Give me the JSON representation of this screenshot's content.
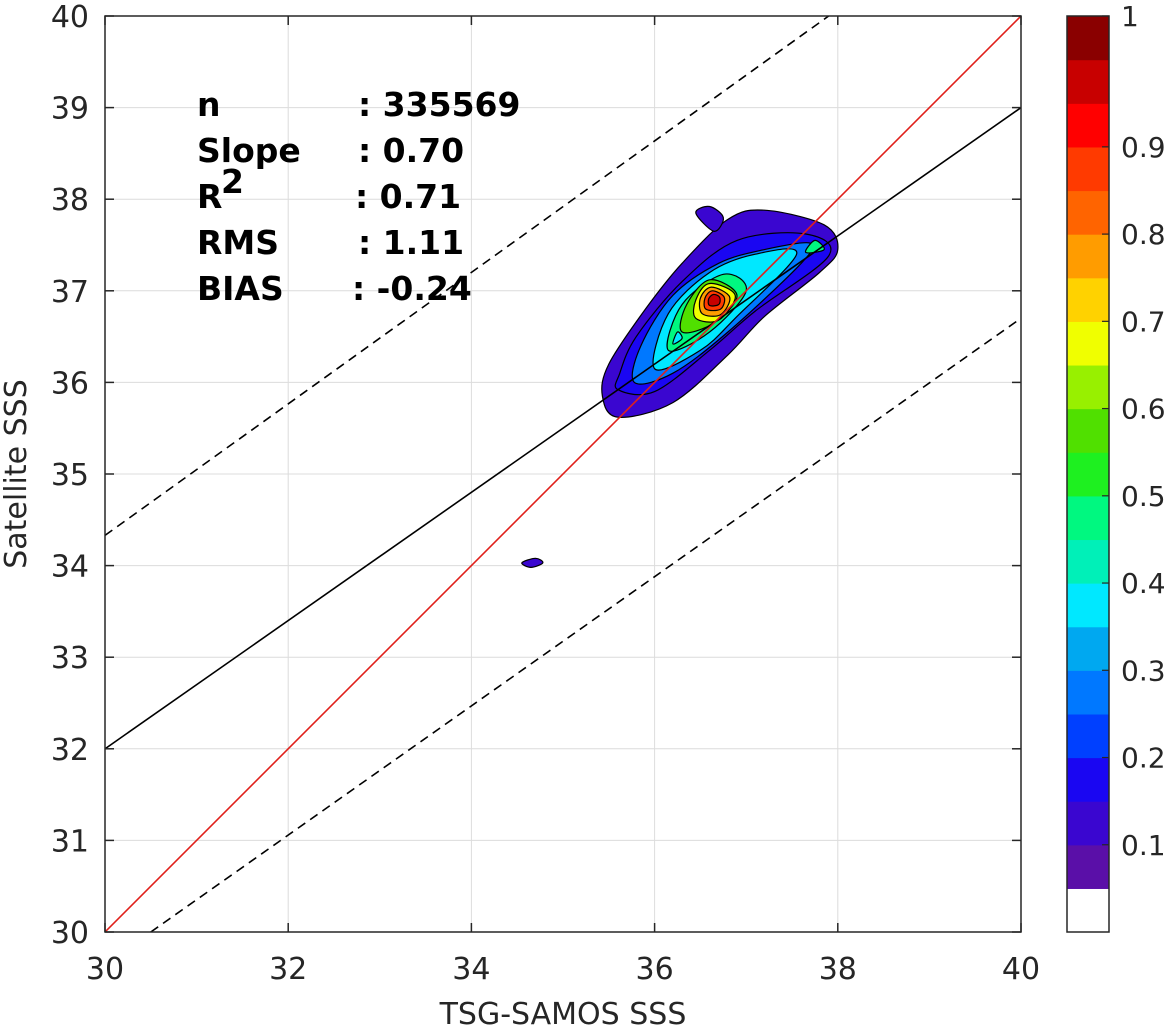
{
  "chart_data": {
    "type": "contour",
    "xlabel": "TSG-SAMOS SSS",
    "ylabel": "Satellite SSS",
    "xlim": [
      30,
      40
    ],
    "ylim": [
      30,
      40
    ],
    "x_ticks": [
      "30",
      "32",
      "34",
      "36",
      "38",
      "40"
    ],
    "y_ticks": [
      "30",
      "31",
      "32",
      "33",
      "34",
      "35",
      "36",
      "37",
      "38",
      "39",
      "40"
    ],
    "grid": true,
    "stats": [
      {
        "label": "n",
        "value": ": 335569"
      },
      {
        "label": "Slope",
        "value": ": 0.70"
      },
      {
        "label": "R",
        "sup": "2",
        "value": ": 0.71"
      },
      {
        "label": "RMS",
        "value": ": 1.11"
      },
      {
        "label": "BIAS",
        "value": ": -0.24"
      }
    ],
    "lines": {
      "one_to_one": {
        "color": "#e0201b",
        "style": "solid",
        "points": [
          [
            30,
            30
          ],
          [
            40,
            40
          ]
        ]
      },
      "fit": {
        "color": "#000000",
        "style": "solid",
        "slope": 0.7,
        "points": [
          [
            30,
            32
          ],
          [
            40,
            39
          ]
        ]
      },
      "upper_bound": {
        "color": "#000000",
        "style": "dashed",
        "points": [
          [
            30,
            34.33
          ],
          [
            37.9,
            40
          ]
        ]
      },
      "lower_bound": {
        "color": "#000000",
        "style": "dashed",
        "points": [
          [
            30.5,
            30
          ],
          [
            40,
            36.7
          ]
        ]
      }
    },
    "colorbar": {
      "ticks": [
        "0.1",
        "0.2",
        "0.3",
        "0.4",
        "0.5",
        "0.6",
        "0.7",
        "0.8",
        "0.9",
        "1"
      ],
      "min": 0,
      "max": 1,
      "levels": 20,
      "colors": [
        "#ffffff",
        "#5a0fa8",
        "#3a06d0",
        "#1a06f2",
        "#0040ff",
        "#0078ff",
        "#00a8f0",
        "#00e8ff",
        "#00f0b8",
        "#00f880",
        "#1ef020",
        "#50e000",
        "#98f000",
        "#f0ff00",
        "#ffd200",
        "#ff9c00",
        "#ff6400",
        "#ff3a00",
        "#ff0000",
        "#c80000",
        "#8a0000"
      ]
    },
    "contours": [
      {
        "level": 0.05,
        "color": "#3a06d0",
        "points": [
          [
            35.43,
            35.85
          ],
          [
            35.6,
            35.62
          ],
          [
            36.2,
            35.78
          ],
          [
            36.8,
            36.3
          ],
          [
            37.2,
            36.72
          ],
          [
            37.8,
            37.2
          ],
          [
            38.0,
            37.45
          ],
          [
            37.85,
            37.72
          ],
          [
            37.2,
            37.88
          ],
          [
            36.8,
            37.78
          ],
          [
            36.3,
            37.3
          ],
          [
            35.9,
            36.8
          ],
          [
            35.5,
            36.2
          ]
        ]
      },
      {
        "level": 0.15,
        "color": "#1a06f2",
        "points": [
          [
            35.6,
            35.92
          ],
          [
            36.0,
            35.9
          ],
          [
            36.6,
            36.35
          ],
          [
            37.1,
            36.78
          ],
          [
            37.9,
            37.38
          ],
          [
            37.65,
            37.62
          ],
          [
            36.9,
            37.55
          ],
          [
            36.3,
            37.1
          ],
          [
            35.8,
            36.5
          ],
          [
            35.62,
            36.1
          ]
        ]
      },
      {
        "level": 0.25,
        "color": "#0078ff",
        "points": [
          [
            35.78,
            36.0
          ],
          [
            36.2,
            36.1
          ],
          [
            36.8,
            36.55
          ],
          [
            37.6,
            37.3
          ],
          [
            37.7,
            37.52
          ],
          [
            37.2,
            37.45
          ],
          [
            36.7,
            37.3
          ],
          [
            36.2,
            36.95
          ],
          [
            35.85,
            36.4
          ]
        ]
      },
      {
        "level": 0.35,
        "color": "#00e8ff",
        "points": [
          [
            36.0,
            36.15
          ],
          [
            36.5,
            36.35
          ],
          [
            36.9,
            36.72
          ],
          [
            37.55,
            37.4
          ],
          [
            37.1,
            37.4
          ],
          [
            36.6,
            37.2
          ],
          [
            36.15,
            36.75
          ]
        ]
      },
      {
        "level": 0.45,
        "color": "#00f880",
        "points": [
          [
            36.15,
            36.35
          ],
          [
            36.6,
            36.55
          ],
          [
            37.0,
            37.0
          ],
          [
            36.75,
            37.18
          ],
          [
            36.3,
            36.85
          ]
        ]
      },
      {
        "level": 0.55,
        "color": "#50e000",
        "points": [
          [
            36.3,
            36.55
          ],
          [
            36.65,
            36.65
          ],
          [
            36.9,
            36.95
          ],
          [
            36.6,
            37.12
          ],
          [
            36.35,
            36.85
          ]
        ]
      },
      {
        "level": 0.65,
        "color": "#f0ff00",
        "points": [
          [
            36.45,
            36.7
          ],
          [
            36.7,
            36.68
          ],
          [
            36.88,
            36.95
          ],
          [
            36.6,
            37.08
          ],
          [
            36.45,
            36.9
          ]
        ]
      },
      {
        "level": 0.75,
        "color": "#ff9c00",
        "points": [
          [
            36.52,
            36.75
          ],
          [
            36.72,
            36.74
          ],
          [
            36.82,
            36.93
          ],
          [
            36.62,
            37.04
          ],
          [
            36.5,
            36.92
          ]
        ]
      },
      {
        "level": 0.85,
        "color": "#ff3a00",
        "points": [
          [
            36.56,
            36.8
          ],
          [
            36.72,
            36.8
          ],
          [
            36.76,
            36.93
          ],
          [
            36.63,
            37.0
          ],
          [
            36.55,
            36.92
          ]
        ]
      },
      {
        "level": 0.95,
        "color": "#c80000",
        "points": [
          [
            36.6,
            36.84
          ],
          [
            36.7,
            36.85
          ],
          [
            36.71,
            36.93
          ],
          [
            36.64,
            36.96
          ],
          [
            36.59,
            36.91
          ]
        ]
      },
      {
        "level": 0.05,
        "color": "#3a06d0",
        "points": [
          [
            36.45,
            37.85
          ],
          [
            36.6,
            37.92
          ],
          [
            36.75,
            37.8
          ],
          [
            36.65,
            37.65
          ]
        ]
      },
      {
        "level": 0.05,
        "color": "#3a06d0",
        "points": [
          [
            34.55,
            34.03
          ],
          [
            34.7,
            34.08
          ],
          [
            34.78,
            34.03
          ],
          [
            34.65,
            33.98
          ]
        ]
      },
      {
        "level": 0.45,
        "color": "#00f880",
        "points": [
          [
            37.65,
            37.42
          ],
          [
            37.85,
            37.45
          ],
          [
            37.75,
            37.55
          ]
        ]
      },
      {
        "level": 0.35,
        "color": "#00e8ff",
        "points": [
          [
            36.2,
            36.42
          ],
          [
            36.3,
            36.48
          ],
          [
            36.25,
            36.55
          ]
        ]
      }
    ]
  }
}
